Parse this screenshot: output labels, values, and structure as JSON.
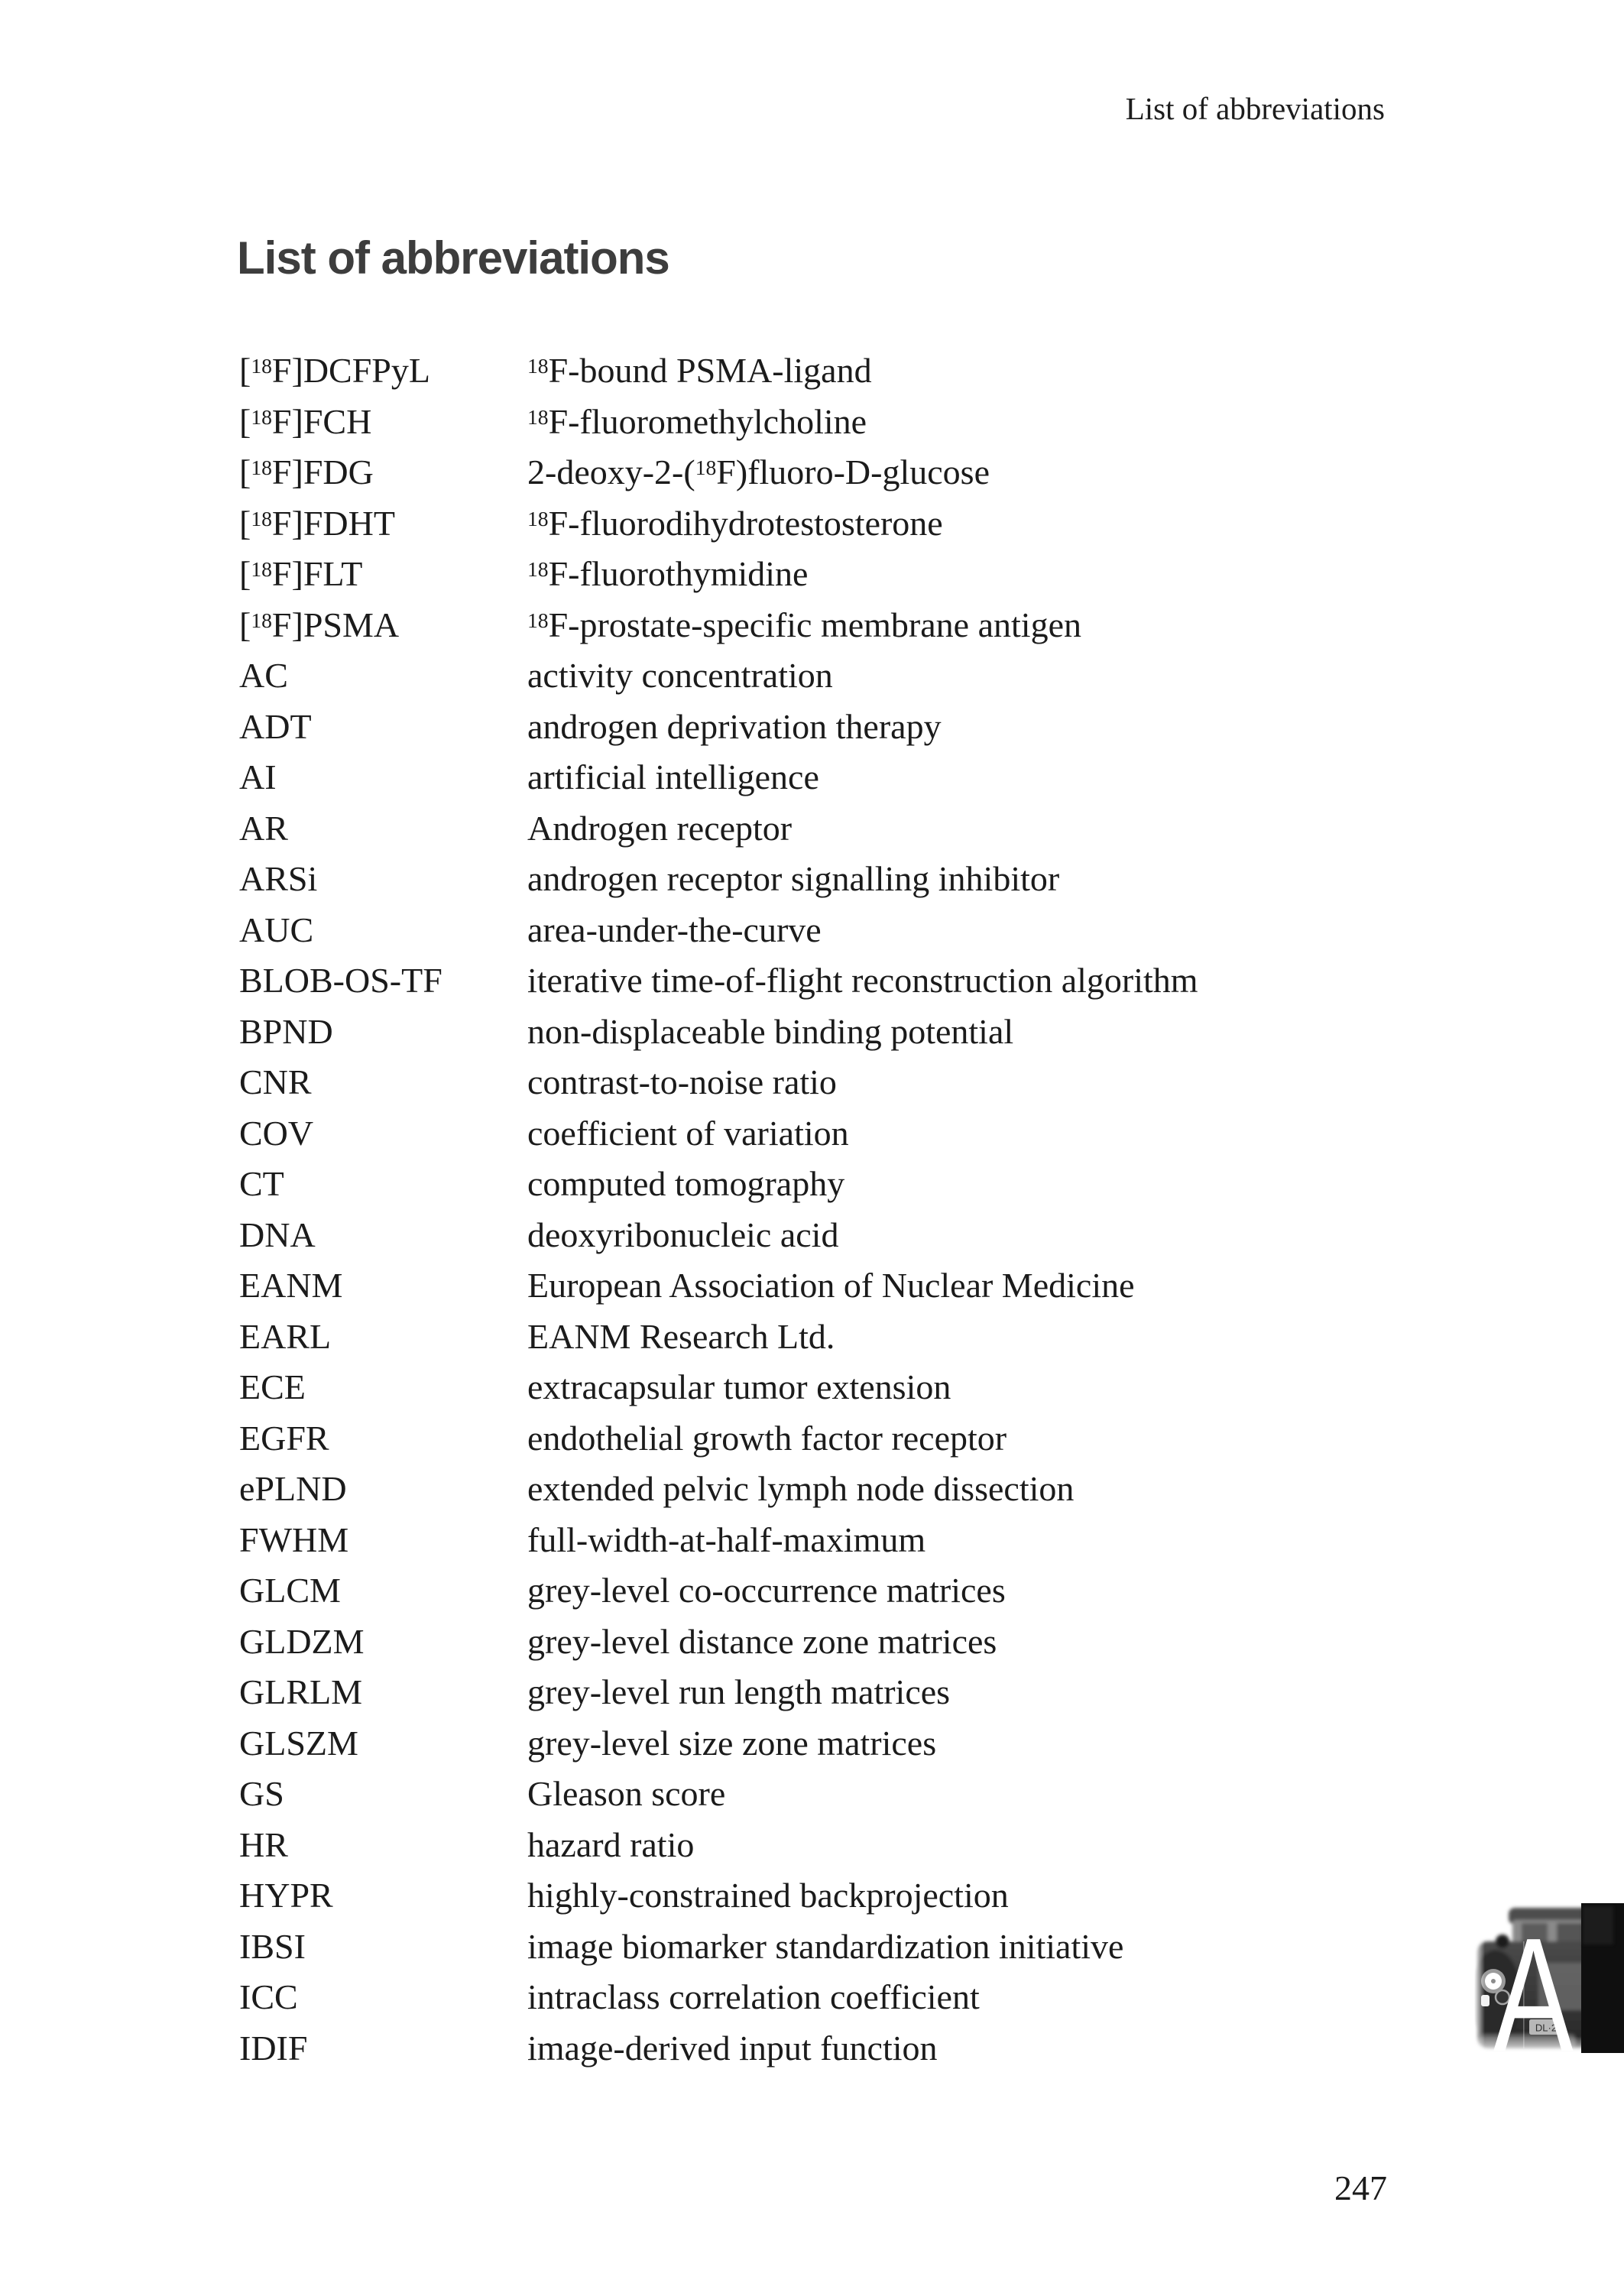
{
  "page": {
    "running_header": "List of abbreviations",
    "title": "List of abbreviations",
    "page_number": "247"
  },
  "abbreviations": [
    {
      "term": "[{18}F]DCFPyL",
      "definition": "{18}F-bound PSMA-ligand"
    },
    {
      "term": "[{18}F]FCH",
      "definition": "{18}F-fluoromethylcholine"
    },
    {
      "term": "[{18}F]FDG",
      "definition": "2-deoxy-2-({18}F)fluoro-D-glucose"
    },
    {
      "term": "[{18}F]FDHT",
      "definition": "{18}F-fluorodihydrotestosterone"
    },
    {
      "term": "[{18}F]FLT",
      "definition": "{18}F-fluorothymidine"
    },
    {
      "term": "[{18}F]PSMA",
      "definition": "{18}F-prostate-specific membrane antigen"
    },
    {
      "term": "AC",
      "definition": "activity concentration"
    },
    {
      "term": "ADT",
      "definition": "androgen deprivation therapy"
    },
    {
      "term": "AI",
      "definition": "artificial intelligence"
    },
    {
      "term": "AR",
      "definition": "Androgen receptor"
    },
    {
      "term": "ARSi",
      "definition": "androgen receptor signalling inhibitor"
    },
    {
      "term": "AUC",
      "definition": "area-under-the-curve"
    },
    {
      "term": "BLOB-OS-TF",
      "definition": "iterative time-of-flight reconstruction algorithm"
    },
    {
      "term": "BPND",
      "definition": "non-displaceable binding potential"
    },
    {
      "term": "CNR",
      "definition": "contrast-to-noise ratio"
    },
    {
      "term": "COV",
      "definition": "coefficient of variation"
    },
    {
      "term": "CT",
      "definition": "computed tomography"
    },
    {
      "term": "DNA",
      "definition": "deoxyribonucleic acid"
    },
    {
      "term": "EANM",
      "definition": "European Association of Nuclear Medicine"
    },
    {
      "term": "EARL",
      "definition": "EANM Research Ltd."
    },
    {
      "term": "ECE",
      "definition": "extracapsular tumor extension"
    },
    {
      "term": "EGFR",
      "definition": "endothelial growth factor receptor"
    },
    {
      "term": "ePLND",
      "definition": "extended pelvic lymph node dissection"
    },
    {
      "term": "FWHM",
      "definition": "full-width-at-half-maximum"
    },
    {
      "term": "GLCM",
      "definition": "grey-level co-occurrence matrices"
    },
    {
      "term": "GLDZM",
      "definition": "grey-level distance zone matrices"
    },
    {
      "term": "GLRLM",
      "definition": "grey-level run length matrices"
    },
    {
      "term": "GLSZM",
      "definition": "grey-level size zone matrices"
    },
    {
      "term": "GS",
      "definition": "Gleason score"
    },
    {
      "term": "HR",
      "definition": "hazard ratio"
    },
    {
      "term": "HYPR",
      "definition": "highly-constrained backprojection"
    },
    {
      "term": "IBSI",
      "definition": "image biomarker standardization initiative"
    },
    {
      "term": "ICC",
      "definition": "intraclass correlation coefficient"
    },
    {
      "term": "IDIF",
      "definition": "image-derived input function"
    }
  ],
  "tab_image": {
    "letter": "A",
    "photo_subject": "black-and-white-vintage-car-front-photo",
    "plate_text": "DL·2"
  },
  "colors": {
    "page_background": "#ffffff",
    "body_text": "#1b1b1b",
    "title_text": "#3d3d3d",
    "tab_dark_band": "#0f0f0f",
    "tab_letter": "#ffffff"
  }
}
